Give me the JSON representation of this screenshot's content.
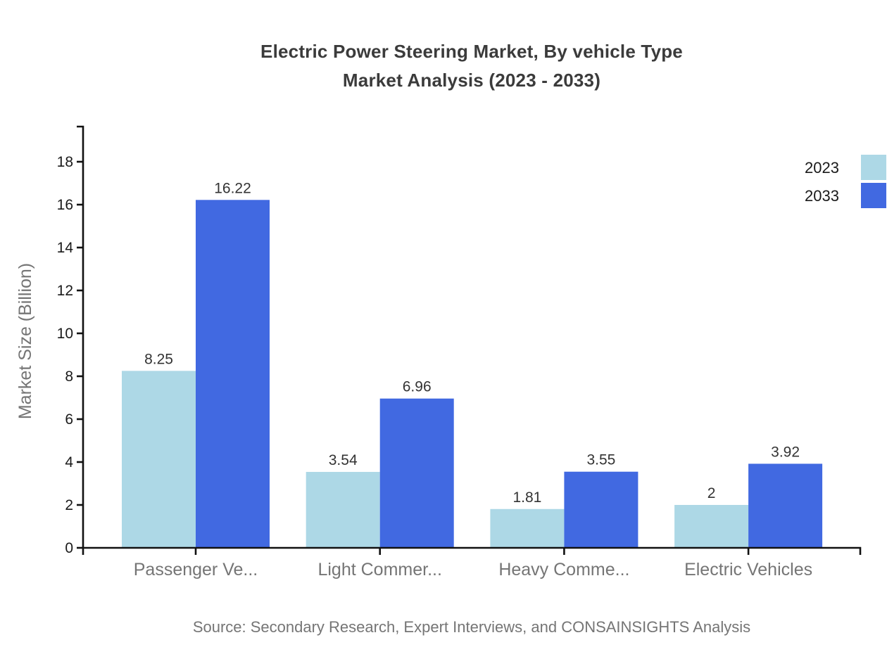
{
  "title": {
    "line1": "Electric Power Steering Market, By vehicle Type",
    "line2": "Market Analysis (2023 - 2033)"
  },
  "chart_data": {
    "type": "bar",
    "categories": [
      "Passenger Ve...",
      "Light Commer...",
      "Heavy Comme...",
      "Electric Vehicles"
    ],
    "series": [
      {
        "name": "2023",
        "color": "#ADD8E6",
        "values": [
          8.25,
          3.54,
          1.81,
          2
        ]
      },
      {
        "name": "2033",
        "color": "#4169E1",
        "values": [
          16.22,
          6.96,
          3.55,
          3.92
        ]
      }
    ],
    "title": "Electric Power Steering Market, By vehicle Type Market Analysis (2023 - 2033)",
    "xlabel": "",
    "ylabel": "Market Size (Billion)",
    "y_ticks": [
      0,
      2,
      4,
      6,
      8,
      10,
      12,
      14,
      16,
      18
    ],
    "ylim": [
      0,
      19.6
    ],
    "grid": false,
    "legend_position": "top-right",
    "value_labels_shown": true
  },
  "legend": {
    "items": [
      {
        "label": "2023",
        "color": "#ADD8E6"
      },
      {
        "label": "2033",
        "color": "#4169E1"
      }
    ]
  },
  "source": "Source: Secondary Research, Expert Interviews, and CONSAINSIGHTS Analysis",
  "colors": {
    "axis": "#111111",
    "tick_label": "#1a1a1a",
    "value_label": "#333333",
    "muted_text": "#757575",
    "title_text": "#3b3b3b",
    "series_2023": "#ADD8E6",
    "series_2033": "#4169E1"
  }
}
